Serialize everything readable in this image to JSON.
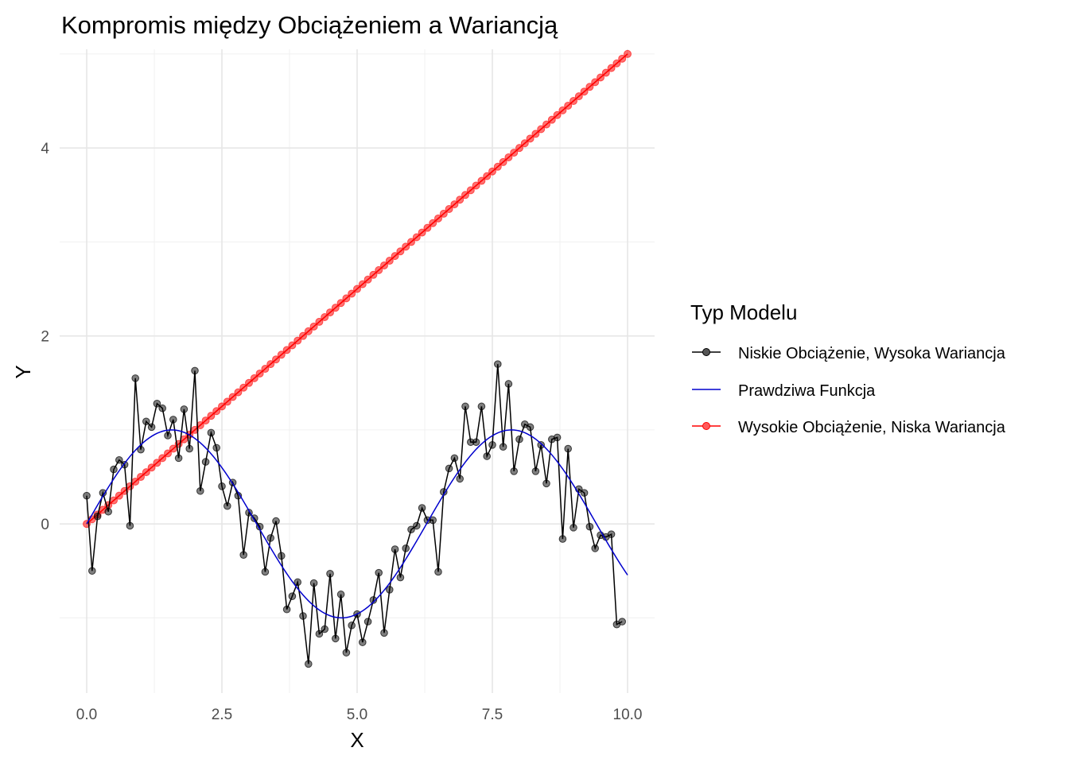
{
  "chart_data": {
    "type": "line",
    "title": "Kompromis między Obciążeniem a Wariancją",
    "xlabel": "X",
    "ylabel": "Y",
    "xlim": [
      -0.5,
      10.5
    ],
    "ylim": [
      -1.8,
      5.05
    ],
    "x_ticks": [
      0,
      2.5,
      5,
      7.5,
      10
    ],
    "x_tick_labels": [
      "0.0",
      "2.5",
      "5.0",
      "7.5",
      "10.0"
    ],
    "y_ticks": [
      0,
      2,
      4
    ],
    "y_tick_labels": [
      "0",
      "2",
      "4"
    ],
    "grid": true,
    "legend": {
      "title": "Typ Modelu",
      "placement": "right",
      "entries": [
        "Niskie Obciążenie, Wysoka Wariancja",
        "Prawdziwa Funkcja",
        "Wysokie Obciążenie, Niska Wariancja"
      ]
    },
    "series": [
      {
        "name": "Niskie Obciążenie, Wysoka Wariancja",
        "color": "#000000",
        "marker": "circle",
        "x": [
          0,
          0.1,
          0.2,
          0.3,
          0.4,
          0.5,
          0.6,
          0.7,
          0.8,
          0.9,
          1.0,
          1.1,
          1.2,
          1.3,
          1.4,
          1.5,
          1.6,
          1.7,
          1.8,
          1.9,
          2.0,
          2.1,
          2.2,
          2.3,
          2.4,
          2.5,
          2.6,
          2.7,
          2.8,
          2.9,
          3.0,
          3.1,
          3.2,
          3.3,
          3.4,
          3.5,
          3.6,
          3.7,
          3.8,
          3.9,
          4.0,
          4.1,
          4.2,
          4.3,
          4.4,
          4.5,
          4.6,
          4.7,
          4.8,
          4.9,
          5.0,
          5.1,
          5.2,
          5.3,
          5.4,
          5.5,
          5.6,
          5.7,
          5.8,
          5.9,
          6.0,
          6.1,
          6.2,
          6.3,
          6.4,
          6.5,
          6.6,
          6.7,
          6.8,
          6.9,
          7.0,
          7.1,
          7.2,
          7.3,
          7.4,
          7.5,
          7.6,
          7.7,
          7.8,
          7.9,
          8.0,
          8.1,
          8.2,
          8.3,
          8.4,
          8.5,
          8.6,
          8.7,
          8.8,
          8.9,
          9.0,
          9.1,
          9.2,
          9.3,
          9.4,
          9.5,
          9.6,
          9.7,
          9.8,
          9.9,
          10.0
        ],
        "values": [
          0.3,
          -0.5,
          0.08,
          0.33,
          0.13,
          0.58,
          0.68,
          0.63,
          -0.02,
          1.55,
          0.79,
          1.09,
          1.03,
          1.28,
          1.23,
          0.94,
          1.11,
          0.7,
          1.22,
          0.8,
          1.63,
          0.35,
          0.66,
          0.97,
          0.81,
          0.4,
          0.19,
          0.44,
          0.3,
          -0.33,
          0.12,
          0.06,
          -0.03,
          -0.51,
          -0.15,
          0.03,
          -0.34,
          -0.91,
          -0.77,
          -0.62,
          -0.98,
          -1.49,
          -0.63,
          -1.17,
          -1.12,
          -0.53,
          -1.22,
          -0.75,
          -1.37,
          -1.08,
          -0.96,
          -1.26,
          -1.04,
          -0.81,
          -0.52,
          -1.16,
          -0.7,
          -0.27,
          -0.57,
          -0.26,
          -0.06,
          -0.02,
          0.17,
          0.04,
          0.04,
          -0.51,
          0.34,
          0.59,
          0.7,
          0.48,
          1.25,
          0.87,
          0.87,
          1.25,
          0.72,
          0.84,
          1.7,
          0.82,
          1.49,
          0.56,
          0.9,
          1.06,
          1.03,
          0.56,
          0.84,
          0.43,
          0.9,
          0.92,
          -0.16,
          0.8,
          -0.04,
          0.37,
          0.33,
          -0.03,
          -0.26,
          -0.12,
          -0.14,
          -0.11,
          -1.07,
          -1.04,
          null
        ]
      },
      {
        "name": "Prawdziwa Funkcja",
        "color": "#0000cd",
        "marker": "none",
        "function": "sin(x)"
      },
      {
        "name": "Wysokie Obciążenie, Niska Wariancja",
        "color": "#ff0000",
        "marker": "circle",
        "function": "0.5*x",
        "points": 101
      }
    ]
  }
}
